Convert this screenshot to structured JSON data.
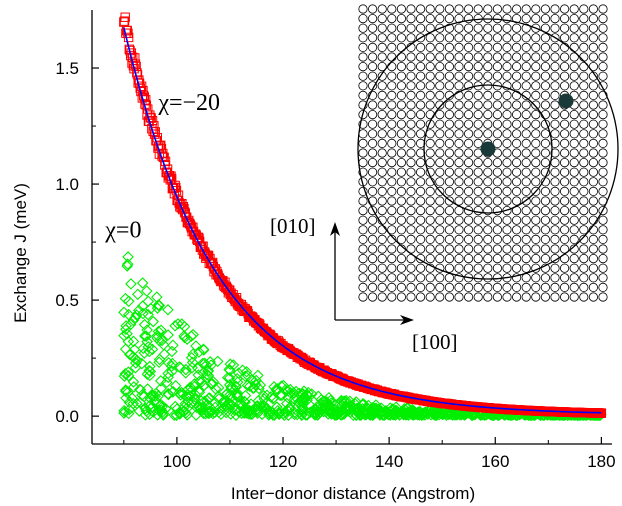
{
  "chart_data": {
    "type": "scatter",
    "xlabel": "Inter−donor distance (Angstrom)",
    "ylabel": "Exchange J (meV)",
    "xlim": [
      84,
      182
    ],
    "ylim": [
      -0.12,
      1.75
    ],
    "x_ticks": [
      100,
      120,
      140,
      160,
      180
    ],
    "x_tick_labels": [
      "100",
      "120",
      "140",
      "160",
      "180"
    ],
    "y_ticks": [
      0.0,
      0.5,
      1.0,
      1.5
    ],
    "y_tick_labels": [
      "0.0",
      "0.5",
      "1.0",
      "1.5"
    ],
    "grid": false,
    "series": [
      {
        "marker": "square",
        "color": "#ff0000",
        "x_range": [
          90,
          180
        ],
        "model": "exponential",
        "J_at_90": 1.7,
        "decay_length_angstrom": 17.2
      },
      {
        "style": "line",
        "color": "#0000ff",
        "x_range": [
          90,
          180
        ],
        "model": "exponential",
        "J_at_90": 1.67,
        "decay_length_angstrom": 17.4
      },
      {
        "marker": "diamond",
        "color": "#00ee00",
        "x_range": [
          90,
          180
        ],
        "envelope_at_90": 0.75,
        "decay_length_angstrom": 17.2
      }
    ],
    "annotations": [
      {
        "text": "χ=−20",
        "x": 96.5,
        "y": 1.32
      },
      {
        "text": "χ=0",
        "x": 86.5,
        "y": 0.77
      }
    ]
  },
  "inset": {
    "direction_labels": [
      "[010]",
      "[100]"
    ],
    "lattice_color": "#000000",
    "donor_color": "#1a3a3a"
  }
}
